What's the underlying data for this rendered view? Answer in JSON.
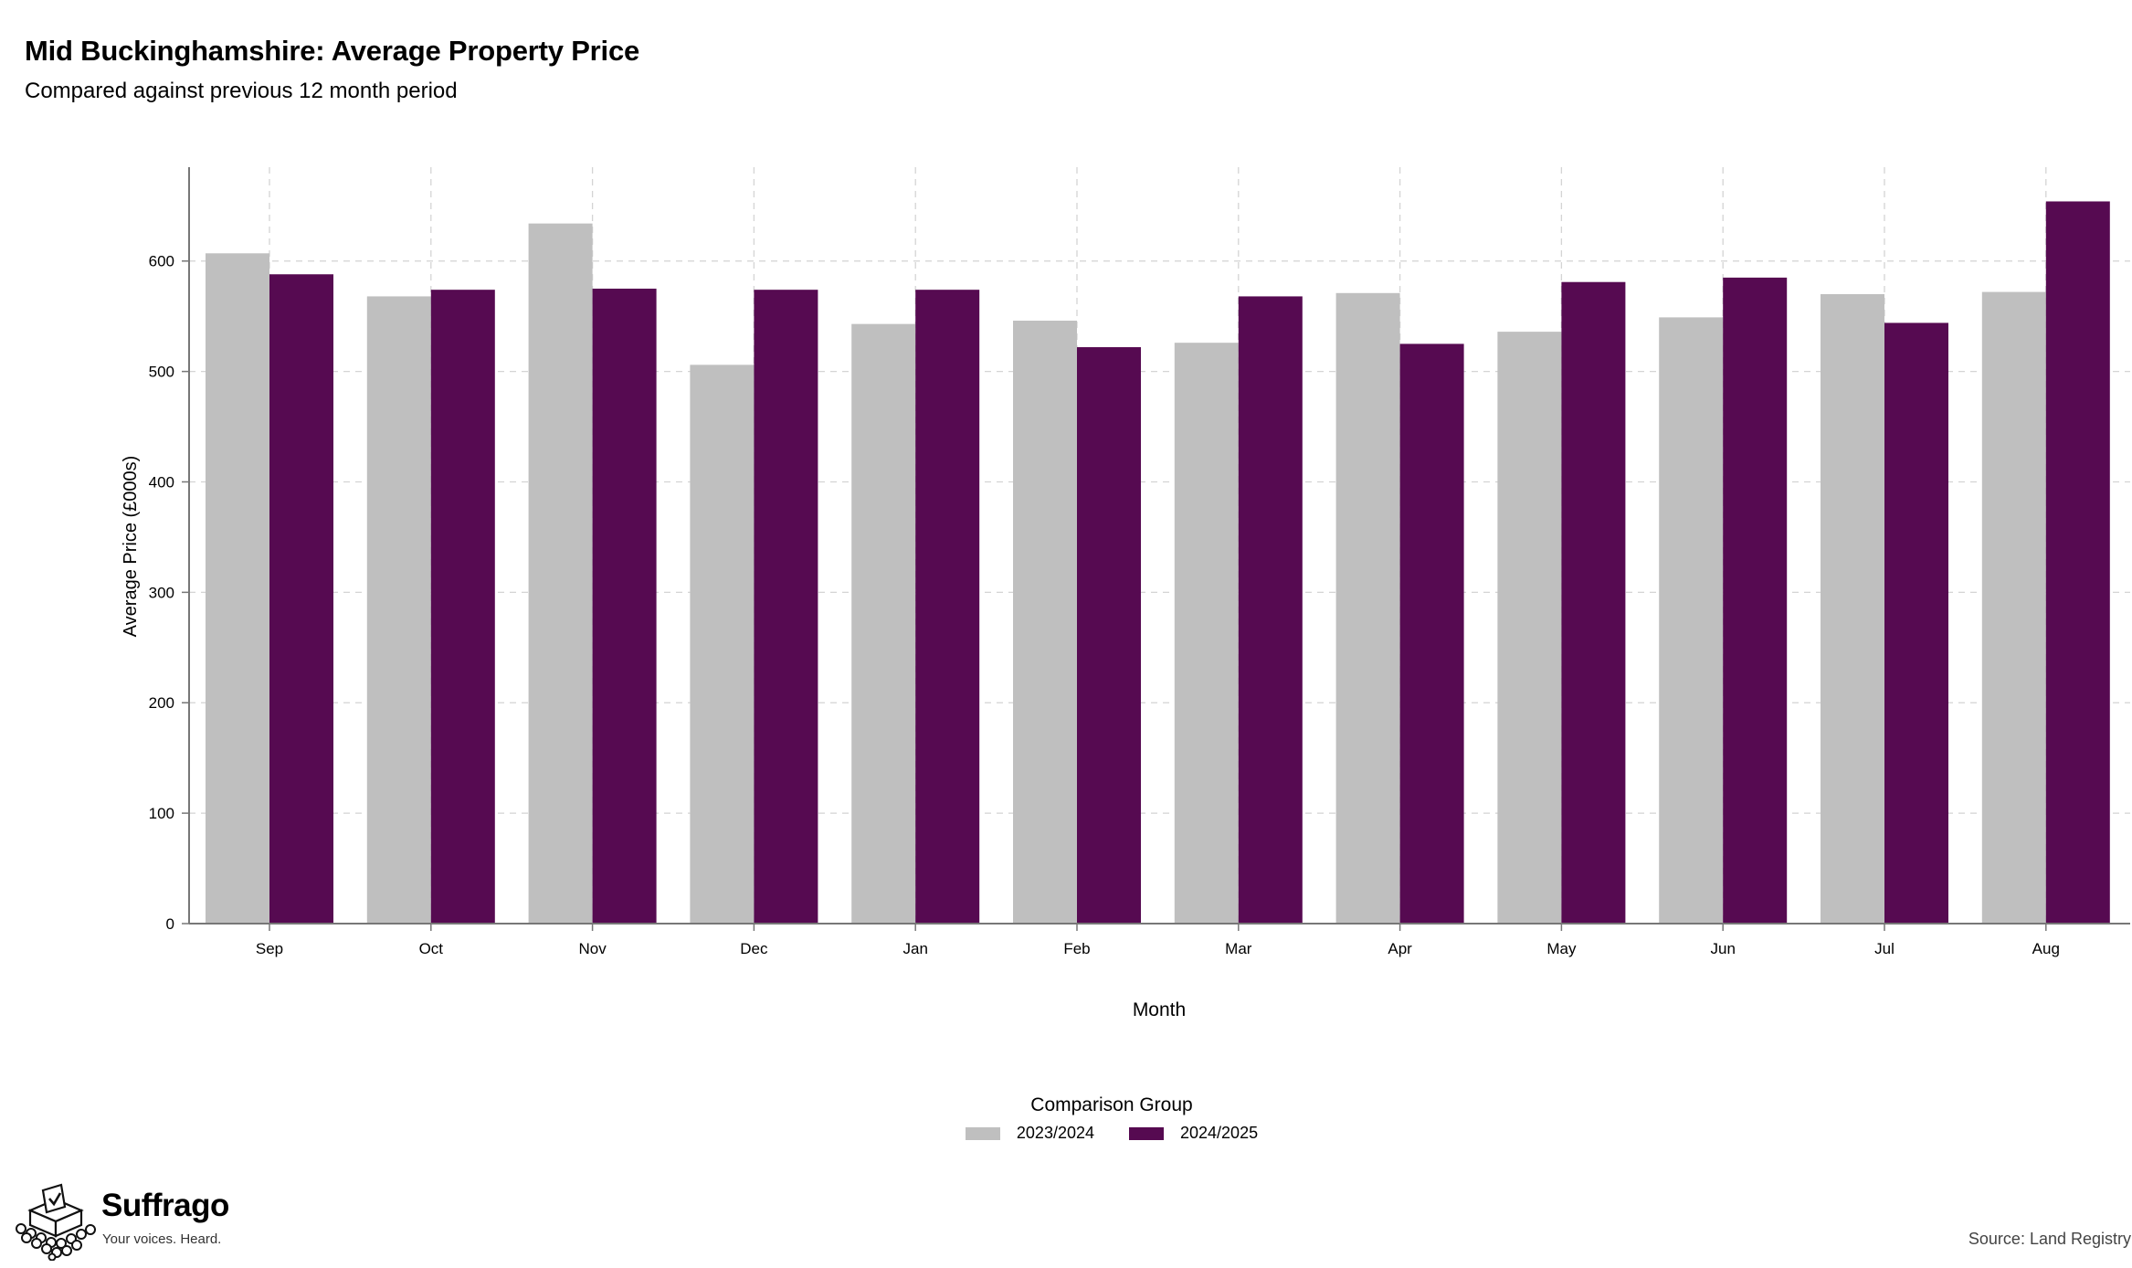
{
  "header": {
    "title": "Mid Buckinghamshire: Average Property Price",
    "subtitle": "Compared against previous 12 month period"
  },
  "chart_data": {
    "type": "bar",
    "title": "Mid Buckinghamshire: Average Property Price",
    "subtitle": "Compared against previous 12 month period",
    "xlabel": "Month",
    "ylabel": "Average Price (£000s)",
    "ylim": [
      0,
      685
    ],
    "yticks": [
      0,
      100,
      200,
      300,
      400,
      500,
      600
    ],
    "categories": [
      "Sep",
      "Oct",
      "Nov",
      "Dec",
      "Jan",
      "Feb",
      "Mar",
      "Apr",
      "May",
      "Jun",
      "Jul",
      "Aug"
    ],
    "series": [
      {
        "name": "2023/2024",
        "color": "#bfbfbf",
        "values": [
          607,
          568,
          634,
          506,
          543,
          546,
          526,
          571,
          536,
          549,
          570,
          572
        ]
      },
      {
        "name": "2024/2025",
        "color": "#560a51",
        "values": [
          588,
          574,
          575,
          574,
          574,
          522,
          568,
          525,
          581,
          585,
          544,
          654
        ]
      }
    ],
    "grid": true,
    "legend_title": "Comparison Group",
    "legend_position": "bottom"
  },
  "branding": {
    "name": "Suffrago",
    "tagline": "Your voices. Heard.",
    "logo_icon": "ballot-box-icon"
  },
  "footer": {
    "source": "Source: Land Registry"
  }
}
